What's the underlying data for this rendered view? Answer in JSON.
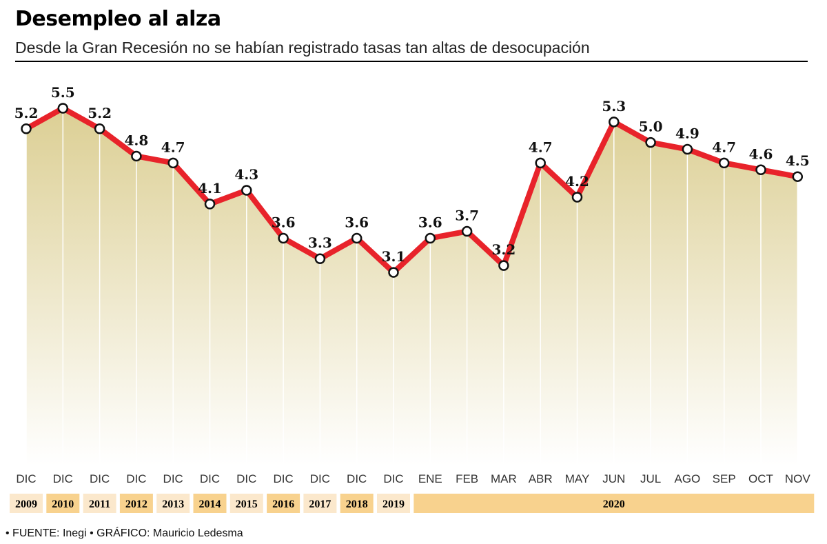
{
  "header": {
    "title": "Desempleo al alza",
    "subtitle": "Desde la Gran Recesión no se habían registrado tasas tan altas de desocupación"
  },
  "footer": {
    "source": "• FUENTE: Inegi • GRÁFICO: Mauricio Ledesma"
  },
  "colors": {
    "line": "#e8232a",
    "fill_top": "#dccf94",
    "year_box_light": "#fbe8cc",
    "year_box_dark": "#f8d28e"
  },
  "chart_data": {
    "type": "area",
    "categories": [
      "DIC",
      "DIC",
      "DIC",
      "DIC",
      "DIC",
      "DIC",
      "DIC",
      "DIC",
      "DIC",
      "DIC",
      "DIC",
      "ENE",
      "FEB",
      "MAR",
      "ABR",
      "MAY",
      "JUN",
      "JUL",
      "AGO",
      "SEP",
      "OCT",
      "NOV"
    ],
    "values": [
      5.2,
      5.5,
      5.2,
      4.8,
      4.7,
      4.1,
      4.3,
      3.6,
      3.3,
      3.6,
      3.1,
      3.6,
      3.7,
      3.2,
      4.7,
      4.2,
      5.3,
      5.0,
      4.9,
      4.7,
      4.6,
      4.5
    ],
    "value_labels": [
      "5.2",
      "5.5",
      "5.2",
      "4.8",
      "4.7",
      "4.1",
      "4.3",
      "3.6",
      "3.3",
      "3.6",
      "3.1",
      "3.6",
      "3.7",
      "3.2",
      "4.7",
      "4.2",
      "5.3",
      "5.0",
      "4.9",
      "4.7",
      "4.6",
      "4.5"
    ],
    "years": [
      {
        "label": "2009",
        "from": 0,
        "to": 0
      },
      {
        "label": "2010",
        "from": 1,
        "to": 1
      },
      {
        "label": "2011",
        "from": 2,
        "to": 2
      },
      {
        "label": "2012",
        "from": 3,
        "to": 3
      },
      {
        "label": "2013",
        "from": 4,
        "to": 4
      },
      {
        "label": "2014",
        "from": 5,
        "to": 5
      },
      {
        "label": "2015",
        "from": 6,
        "to": 6
      },
      {
        "label": "2016",
        "from": 7,
        "to": 7
      },
      {
        "label": "2017",
        "from": 8,
        "to": 8
      },
      {
        "label": "2018",
        "from": 9,
        "to": 9
      },
      {
        "label": "2019",
        "from": 10,
        "to": 10
      },
      {
        "label": "2020",
        "from": 11,
        "to": 21
      }
    ],
    "title": "Desempleo al alza",
    "xlabel": "",
    "ylabel": "",
    "ylim": [
      0,
      5.5
    ],
    "grid": false,
    "legend": "none"
  }
}
